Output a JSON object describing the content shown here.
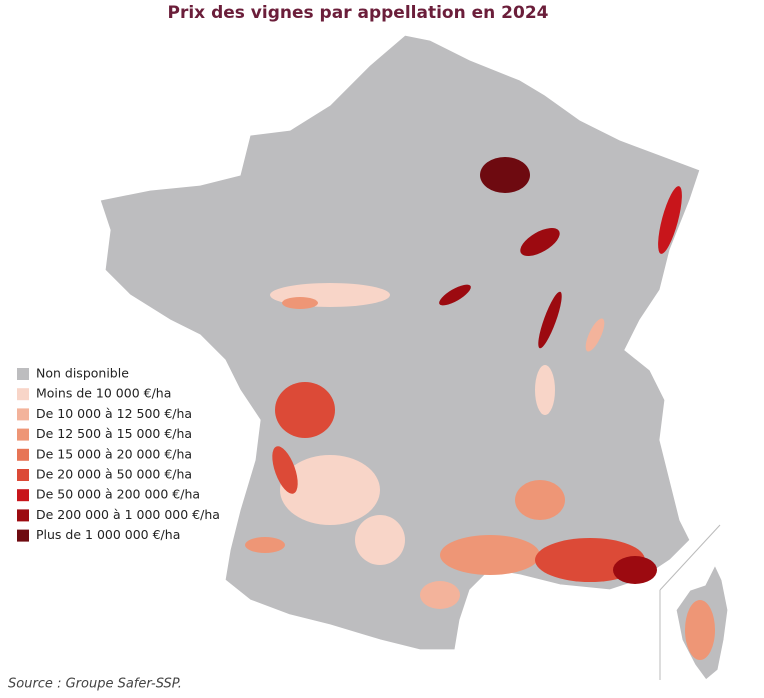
{
  "title": "Prix des vignes par appellation en 2024",
  "legend": [
    {
      "label": "Non disponible",
      "color": "#bdbdbf"
    },
    {
      "label": "Moins de 10 000 €/ha",
      "color": "#f8d5c8"
    },
    {
      "label": "De 10 000 à 12 500 €/ha",
      "color": "#f3b39b"
    },
    {
      "label": "De 12 500 à 15 000 €/ha",
      "color": "#ee9676"
    },
    {
      "label": "De 15 000 à 20 000 €/ha",
      "color": "#e77556"
    },
    {
      "label": "De 20 000 à 50 000 €/ha",
      "color": "#dc4a37"
    },
    {
      "label": "De 50 000 à 200 000 €/ha",
      "color": "#c8151b"
    },
    {
      "label": "De 200 000 à 1 000 000 €/ha",
      "color": "#9c0a10"
    },
    {
      "label": "Plus de 1 000 000 €/ha",
      "color": "#6e0a10"
    }
  ],
  "source": "Source : Groupe Safer-SSP."
}
